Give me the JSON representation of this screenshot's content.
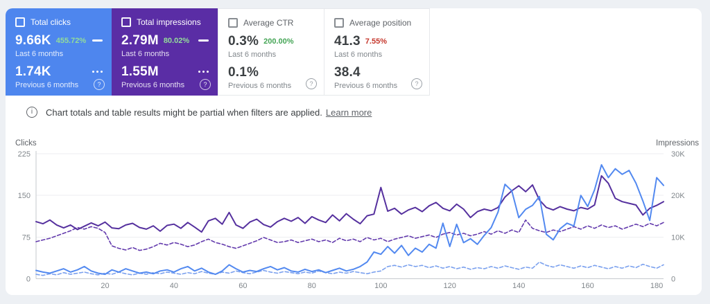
{
  "cards": [
    {
      "title": "Total clicks",
      "value": "9.66K",
      "delta": "455.72%",
      "period": "Last 6 months",
      "prev_value": "1.74K",
      "prev_period": "Previous 6 months",
      "selected": true,
      "accent_color": "#4e86ee"
    },
    {
      "title": "Total impressions",
      "value": "2.79M",
      "delta": "80.02%",
      "period": "Last 6 months",
      "prev_value": "1.55M",
      "prev_period": "Previous 6 months",
      "selected": true,
      "accent_color": "#5a2da5"
    },
    {
      "title": "Average CTR",
      "value": "0.3%",
      "delta": "200.00%",
      "period": "Last 6 months",
      "prev_value": "0.1%",
      "prev_period": "Previous 6 months",
      "selected": false,
      "delta_color": "#45a556"
    },
    {
      "title": "Average position",
      "value": "41.3",
      "delta": "7.55%",
      "period": "Last 6 months",
      "prev_value": "38.4",
      "prev_period": "Previous 6 months",
      "selected": false,
      "delta_color": "#c5372c"
    }
  ],
  "icons": {
    "help_glyph": "?",
    "info_glyph": "i",
    "checkbox": "checkbox-icon",
    "solid_line": "solid-line-icon",
    "dotted_line": "dotted-line-icon"
  },
  "info": {
    "text": "Chart totals and table results might be partial when filters are applied.",
    "link": "Learn more"
  },
  "chart_data": {
    "type": "line",
    "x_step": 2,
    "x_max": 182,
    "x_ticks": [
      20,
      40,
      60,
      80,
      100,
      120,
      140,
      160,
      180
    ],
    "grid": true,
    "left_axis": {
      "label": "Clicks",
      "max": 225,
      "ticks": [
        225,
        150,
        75,
        0
      ]
    },
    "right_axis": {
      "label": "Impressions",
      "max": 30,
      "unit": "K",
      "ticks": [
        "30K",
        "20K",
        "10K",
        "0"
      ]
    },
    "series": [
      {
        "id": "clicks-current",
        "name": "Clicks (last 6 months)",
        "axis": "left",
        "style": "solid",
        "color": "#5289f0",
        "z": 4,
        "values": [
          15,
          12,
          10,
          14,
          18,
          12,
          16,
          22,
          14,
          10,
          8,
          16,
          12,
          18,
          14,
          10,
          12,
          9,
          14,
          16,
          12,
          18,
          22,
          14,
          19,
          12,
          8,
          14,
          25,
          18,
          12,
          15,
          13,
          18,
          22,
          16,
          20,
          14,
          12,
          17,
          13,
          16,
          11,
          15,
          19,
          14,
          17,
          22,
          30,
          48,
          44,
          58,
          46,
          60,
          42,
          55,
          48,
          62,
          55,
          100,
          58,
          98,
          65,
          72,
          62,
          78,
          92,
          120,
          170,
          158,
          110,
          125,
          132,
          148,
          80,
          70,
          90,
          100,
          95,
          150,
          130,
          160,
          205,
          182,
          198,
          188,
          195,
          172,
          140,
          105,
          182,
          168
        ]
      },
      {
        "id": "clicks-previous",
        "name": "Clicks (previous 6 months)",
        "axis": "left",
        "style": "dashed",
        "color": "#7aa0ee",
        "z": 2,
        "values": [
          8,
          6,
          9,
          7,
          11,
          8,
          10,
          12,
          9,
          7,
          10,
          8,
          12,
          9,
          7,
          10,
          8,
          11,
          9,
          12,
          10,
          8,
          11,
          9,
          13,
          10,
          8,
          12,
          10,
          14,
          11,
          9,
          12,
          15,
          12,
          10,
          13,
          11,
          9,
          12,
          10,
          14,
          11,
          9,
          12,
          10,
          13,
          11,
          9,
          12,
          14,
          22,
          24,
          21,
          25,
          22,
          24,
          20,
          23,
          19,
          22,
          18,
          21,
          17,
          20,
          18,
          22,
          19,
          23,
          20,
          17,
          21,
          19,
          30,
          24,
          21,
          25,
          22,
          19,
          23,
          20,
          24,
          21,
          18,
          22,
          19,
          23,
          20,
          26,
          22,
          19,
          25
        ]
      },
      {
        "id": "impressions-current",
        "name": "Impressions (last 6 months)",
        "axis": "right",
        "style": "solid",
        "color": "#55309e",
        "z": 3,
        "values": [
          13.7,
          13.2,
          14.1,
          12.9,
          12.2,
          12.9,
          11.8,
          12.6,
          13.4,
          12.7,
          13.6,
          12.2,
          12.0,
          12.9,
          13.3,
          12.3,
          11.9,
          12.7,
          11.4,
          12.8,
          13.1,
          12.1,
          13.5,
          12.4,
          11.2,
          13.9,
          14.5,
          13.1,
          15.9,
          12.9,
          12.1,
          13.6,
          14.3,
          13.0,
          12.4,
          13.7,
          14.5,
          13.8,
          14.7,
          13.3,
          14.9,
          14.1,
          13.5,
          15.3,
          13.9,
          15.6,
          14.3,
          13.2,
          15.1,
          15.5,
          21.9,
          16.2,
          16.9,
          15.5,
          16.5,
          17.1,
          16.1,
          17.5,
          18.3,
          16.9,
          16.3,
          17.9,
          16.7,
          14.7,
          16.1,
          16.7,
          16.3,
          17.1,
          19.6,
          21.1,
          22.3,
          20.9,
          22.5,
          18.9,
          17.1,
          16.5,
          17.3,
          16.7,
          16.3,
          17.1,
          16.7,
          17.7,
          24.7,
          22.9,
          19.3,
          18.5,
          18.1,
          17.7,
          15.3,
          16.9,
          17.6,
          18.5
        ]
      },
      {
        "id": "impressions-previous",
        "name": "Impressions (previous 6 months)",
        "axis": "right",
        "style": "dashed",
        "color": "#6239ac",
        "z": 1,
        "values": [
          8.9,
          9.3,
          9.7,
          10.3,
          10.9,
          11.5,
          12.3,
          11.9,
          12.5,
          12.1,
          11.1,
          7.9,
          7.3,
          6.9,
          7.5,
          6.8,
          7.1,
          7.7,
          8.5,
          8.1,
          8.7,
          8.3,
          7.7,
          8.1,
          8.9,
          9.5,
          8.7,
          8.3,
          7.7,
          7.3,
          7.9,
          8.5,
          9.1,
          9.9,
          9.3,
          8.7,
          8.9,
          9.3,
          8.7,
          9.1,
          9.5,
          8.9,
          9.3,
          8.7,
          9.7,
          9.1,
          9.5,
          8.9,
          9.9,
          9.3,
          9.7,
          8.9,
          9.5,
          9.9,
          10.3,
          9.7,
          10.1,
          10.5,
          9.9,
          10.7,
          11.1,
          10.5,
          10.9,
          10.3,
          10.7,
          11.3,
          10.7,
          11.5,
          10.9,
          11.7,
          11.1,
          14.1,
          12.1,
          11.5,
          11.1,
          11.7,
          11.3,
          11.9,
          12.5,
          11.9,
          12.7,
          12.1,
          12.9,
          12.3,
          12.7,
          11.9,
          12.5,
          13.1,
          12.5,
          13.3,
          12.7,
          13.5
        ]
      }
    ]
  }
}
